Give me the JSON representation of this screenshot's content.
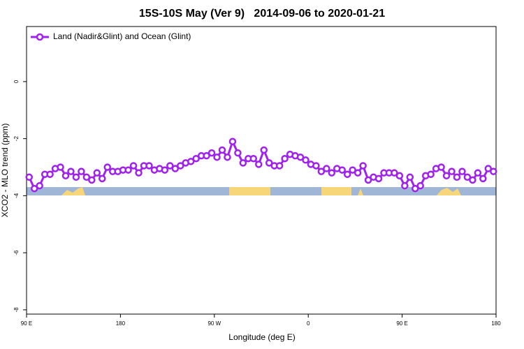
{
  "chart_data": {
    "type": "line",
    "title": "15S-10S May (Ver 9)   2014-09-06 to 2020-01-21",
    "x_label": "Longitude (deg E)",
    "y_label": "XCO2 - MLO trend (ppm)",
    "xlim": [
      90,
      540
    ],
    "xticks": [
      {
        "value": 90,
        "label": "90 E"
      },
      {
        "value": 180,
        "label": "180"
      },
      {
        "value": 270,
        "label": "90 W"
      },
      {
        "value": 360,
        "label": "0"
      },
      {
        "value": 450,
        "label": "90 E"
      },
      {
        "value": 540,
        "label": "180"
      }
    ],
    "ylim": [
      -8.15,
      1.93
    ],
    "yticks": [
      0,
      -2,
      -4,
      -6,
      -8
    ],
    "legend": "top-left",
    "x": [
      92.5,
      97.5,
      102.5,
      107.5,
      112.5,
      117.5,
      122.5,
      127.5,
      132.5,
      137.5,
      142.5,
      147.5,
      152.5,
      157.5,
      162.5,
      167.5,
      172.5,
      177.5,
      182.5,
      187.5,
      192.5,
      197.5,
      202.5,
      207.5,
      212.5,
      217.5,
      222.5,
      227.5,
      232.5,
      237.5,
      242.5,
      247.5,
      252.5,
      257.5,
      262.5,
      267.5,
      272.5,
      277.5,
      282.5,
      287.5,
      292.5,
      297.5,
      302.5,
      307.5,
      312.5,
      317.5,
      322.5,
      327.5,
      332.5,
      337.5,
      342.5,
      347.5,
      352.5,
      357.5,
      362.5,
      367.5,
      372.5,
      377.5,
      382.5,
      387.5,
      392.5,
      397.5,
      402.5,
      407.5,
      412.5,
      417.5,
      422.5,
      427.5,
      432.5,
      437.5,
      442.5,
      447.5,
      452.5,
      457.5,
      462.5,
      467.5,
      472.5,
      477.5,
      482.5,
      487.5,
      492.5,
      497.5,
      502.5,
      507.5,
      512.5,
      517.5,
      522.5,
      527.5,
      532.5,
      537.5
    ],
    "series": [
      {
        "name": "Land (Nadir&Glint) and Ocean (Glint)",
        "color": "#a020f0",
        "values": [
          -3.35,
          -3.75,
          -3.65,
          -3.25,
          -3.25,
          -3.05,
          -3.0,
          -3.3,
          -3.15,
          -3.35,
          -3.15,
          -3.35,
          -3.45,
          -3.2,
          -3.4,
          -3.0,
          -3.15,
          -3.15,
          -3.1,
          -3.1,
          -2.95,
          -3.2,
          -2.95,
          -2.95,
          -3.1,
          -3.05,
          -3.1,
          -2.95,
          -3.05,
          -2.95,
          -2.85,
          -2.8,
          -2.7,
          -2.6,
          -2.6,
          -2.5,
          -2.65,
          -2.4,
          -2.65,
          -2.1,
          -2.5,
          -2.85,
          -2.7,
          -2.7,
          -2.9,
          -2.4,
          -2.85,
          -2.95,
          -2.95,
          -2.7,
          -2.55,
          -2.6,
          -2.65,
          -2.75,
          -2.9,
          -2.95,
          -3.15,
          -3.05,
          -3.2,
          -3.05,
          -3.1,
          -3.25,
          -3.1,
          -3.2,
          -2.95,
          -3.45,
          -3.35,
          -3.4,
          -3.2,
          -3.2,
          -3.2,
          -3.3,
          -3.65,
          -3.35,
          -3.75,
          -3.65,
          -3.3,
          -3.25,
          -3.05,
          -3.0,
          -3.3,
          -3.15,
          -3.35,
          -3.15,
          -3.35,
          -3.45,
          -3.2,
          -3.4,
          -3.05,
          -3.15
        ]
      }
    ]
  }
}
